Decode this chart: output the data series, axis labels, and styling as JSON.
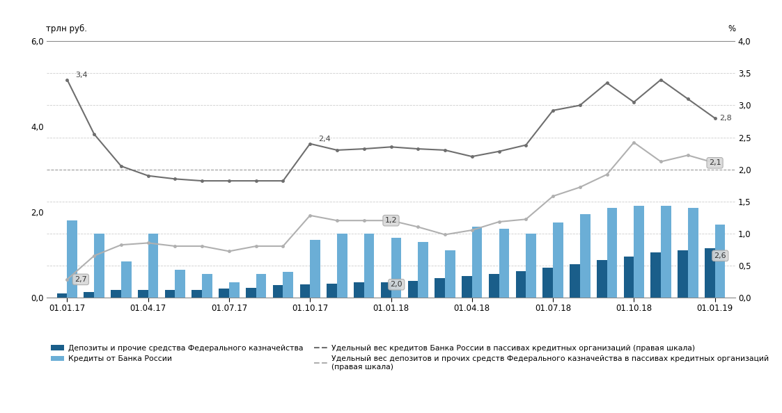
{
  "title_left": "трлн руб.",
  "title_right": "%",
  "x_ticks_labels": [
    "01.01.17",
    "01.04.17",
    "01.07.17",
    "01.10.17",
    "01.01.18",
    "01.04.18",
    "01.07.18",
    "01.10.18",
    "01.01.19"
  ],
  "x_ticks_pos": [
    0,
    3,
    6,
    9,
    12,
    15,
    18,
    21,
    24
  ],
  "bar_dark": [
    0.1,
    0.12,
    0.18,
    0.18,
    0.18,
    0.18,
    0.2,
    0.22,
    0.28,
    0.3,
    0.32,
    0.35,
    0.35,
    0.38,
    0.45,
    0.5,
    0.55,
    0.62,
    0.7,
    0.78,
    0.88,
    0.95,
    1.05,
    1.1,
    1.15
  ],
  "bar_light": [
    1.8,
    1.5,
    0.85,
    1.5,
    0.65,
    0.55,
    0.35,
    0.55,
    0.6,
    1.35,
    1.5,
    1.5,
    1.4,
    1.3,
    1.1,
    1.65,
    1.6,
    1.5,
    1.75,
    1.95,
    2.1,
    2.15,
    2.15,
    2.1,
    1.7
  ],
  "line_dark_grey": [
    3.4,
    2.55,
    2.05,
    1.9,
    1.85,
    1.82,
    1.82,
    1.82,
    1.82,
    2.4,
    2.3,
    2.32,
    2.35,
    2.32,
    2.3,
    2.2,
    2.28,
    2.38,
    2.92,
    3.0,
    3.35,
    3.05,
    3.4,
    3.1,
    2.8
  ],
  "line_light_grey": [
    0.28,
    0.65,
    0.82,
    0.85,
    0.8,
    0.8,
    0.72,
    0.8,
    0.8,
    1.28,
    1.2,
    1.2,
    1.2,
    1.1,
    0.98,
    1.05,
    1.18,
    1.22,
    1.58,
    1.72,
    1.92,
    2.42,
    2.12,
    2.22,
    2.1
  ],
  "bar_dark_color": "#1a5e8a",
  "bar_light_color": "#6baed6",
  "line_dark_color": "#6e6e6e",
  "line_light_color": "#b0b0b0",
  "ylim_left": [
    0.0,
    6.0
  ],
  "ylim_right": [
    0.0,
    4.0
  ],
  "yticks_left": [
    0.0,
    2.0,
    4.0,
    6.0
  ],
  "ytick_labels_left": [
    "0,0",
    "2,0",
    "4,0",
    "6,0"
  ],
  "ytick_labels_right": [
    "0,0",
    "0,5",
    "1,0",
    "1,5",
    "2,0",
    "2,5",
    "3,0",
    "3,5",
    "4,0"
  ],
  "grid_yticks_left": [
    0.0,
    0.5,
    1.0,
    1.5,
    2.0,
    2.5,
    3.0,
    3.5,
    4.0,
    4.5,
    5.0,
    5.5,
    6.0
  ],
  "legend_label_dark_bar": "Депозиты и прочие средства Федерального казначейства",
  "legend_label_light_bar": "Кредиты от Банка России",
  "legend_label_dark_line": "Удельный вес кредитов Банка России в пассивах кредитных организаций (правая шкала)",
  "legend_label_light_line": "Удельный вес депозитов и прочих средств Федерального казначейства в пассивах кредитных организаций\n(правая шкала)"
}
